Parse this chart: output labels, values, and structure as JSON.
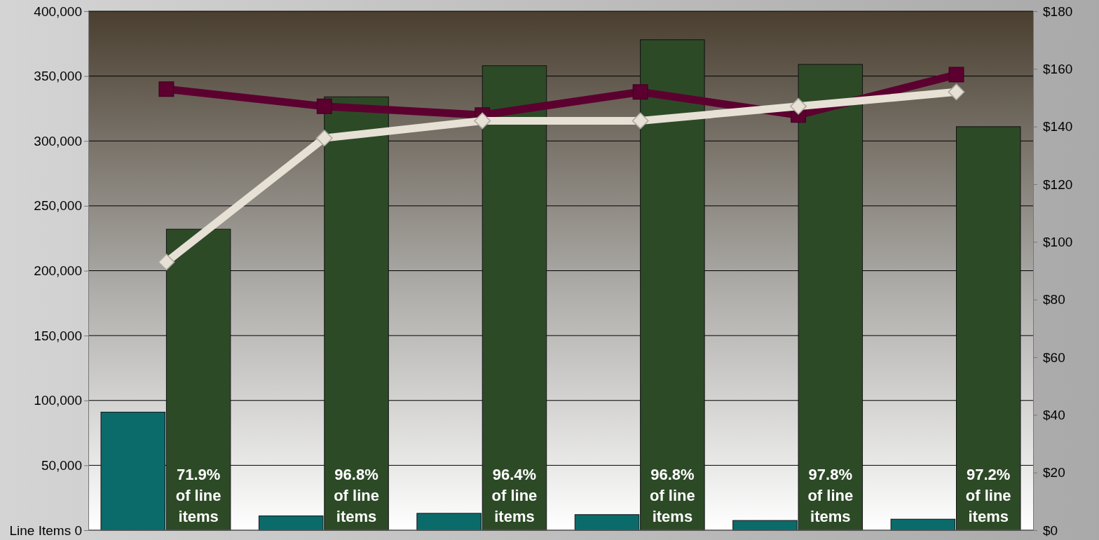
{
  "chart_data": {
    "type": "bar",
    "categories": [
      null,
      null,
      null,
      null,
      null,
      null
    ],
    "series": [
      {
        "color": "#0b6b6b",
        "values": [
          91000,
          11000,
          13000,
          12000,
          7500,
          8500
        ]
      },
      {
        "color": "#2d4a27",
        "values": [
          232000,
          334000,
          358000,
          378000,
          359000,
          311000
        ]
      },
      {
        "type": "line",
        "axis": "y2",
        "color": "#5c0030",
        "marker": "square",
        "values": [
          153,
          147,
          144,
          152,
          144,
          158
        ]
      },
      {
        "type": "line",
        "axis": "y2",
        "color": "#e6e0d5",
        "marker": "diamond",
        "values": [
          93,
          136,
          142,
          142,
          147,
          152
        ]
      }
    ],
    "annotations": [
      "71.9%\nof line\nitems",
      "96.8%\nof line\nitems",
      "96.4%\nof line\nitems",
      "96.8%\nof line\nitems",
      "97.8%\nof line\nitems",
      "97.2%\nof line\nitems"
    ],
    "ylim": [
      0,
      400000
    ],
    "yticks": [
      {
        "value": 0,
        "label": "Line Items 0"
      },
      {
        "value": 50000,
        "label": "50,000"
      },
      {
        "value": 100000,
        "label": "100,000"
      },
      {
        "value": 150000,
        "label": "150,000"
      },
      {
        "value": 200000,
        "label": "200,000"
      },
      {
        "value": 250000,
        "label": "250,000"
      },
      {
        "value": 300000,
        "label": "300,000"
      },
      {
        "value": 350000,
        "label": "350,000"
      },
      {
        "value": 400000,
        "label": "400,000"
      }
    ],
    "y2lim": [
      0,
      180
    ],
    "y2ticks": [
      {
        "value": 0,
        "label": "$0"
      },
      {
        "value": 20,
        "label": "$20"
      },
      {
        "value": 40,
        "label": "$40"
      },
      {
        "value": 60,
        "label": "$60"
      },
      {
        "value": 80,
        "label": "$80"
      },
      {
        "value": 100,
        "label": "$100"
      },
      {
        "value": 120,
        "label": "$120"
      },
      {
        "value": 140,
        "label": "$140"
      },
      {
        "value": 160,
        "label": "$160"
      },
      {
        "value": 180,
        "label": "$180"
      }
    ],
    "grid": "y"
  }
}
